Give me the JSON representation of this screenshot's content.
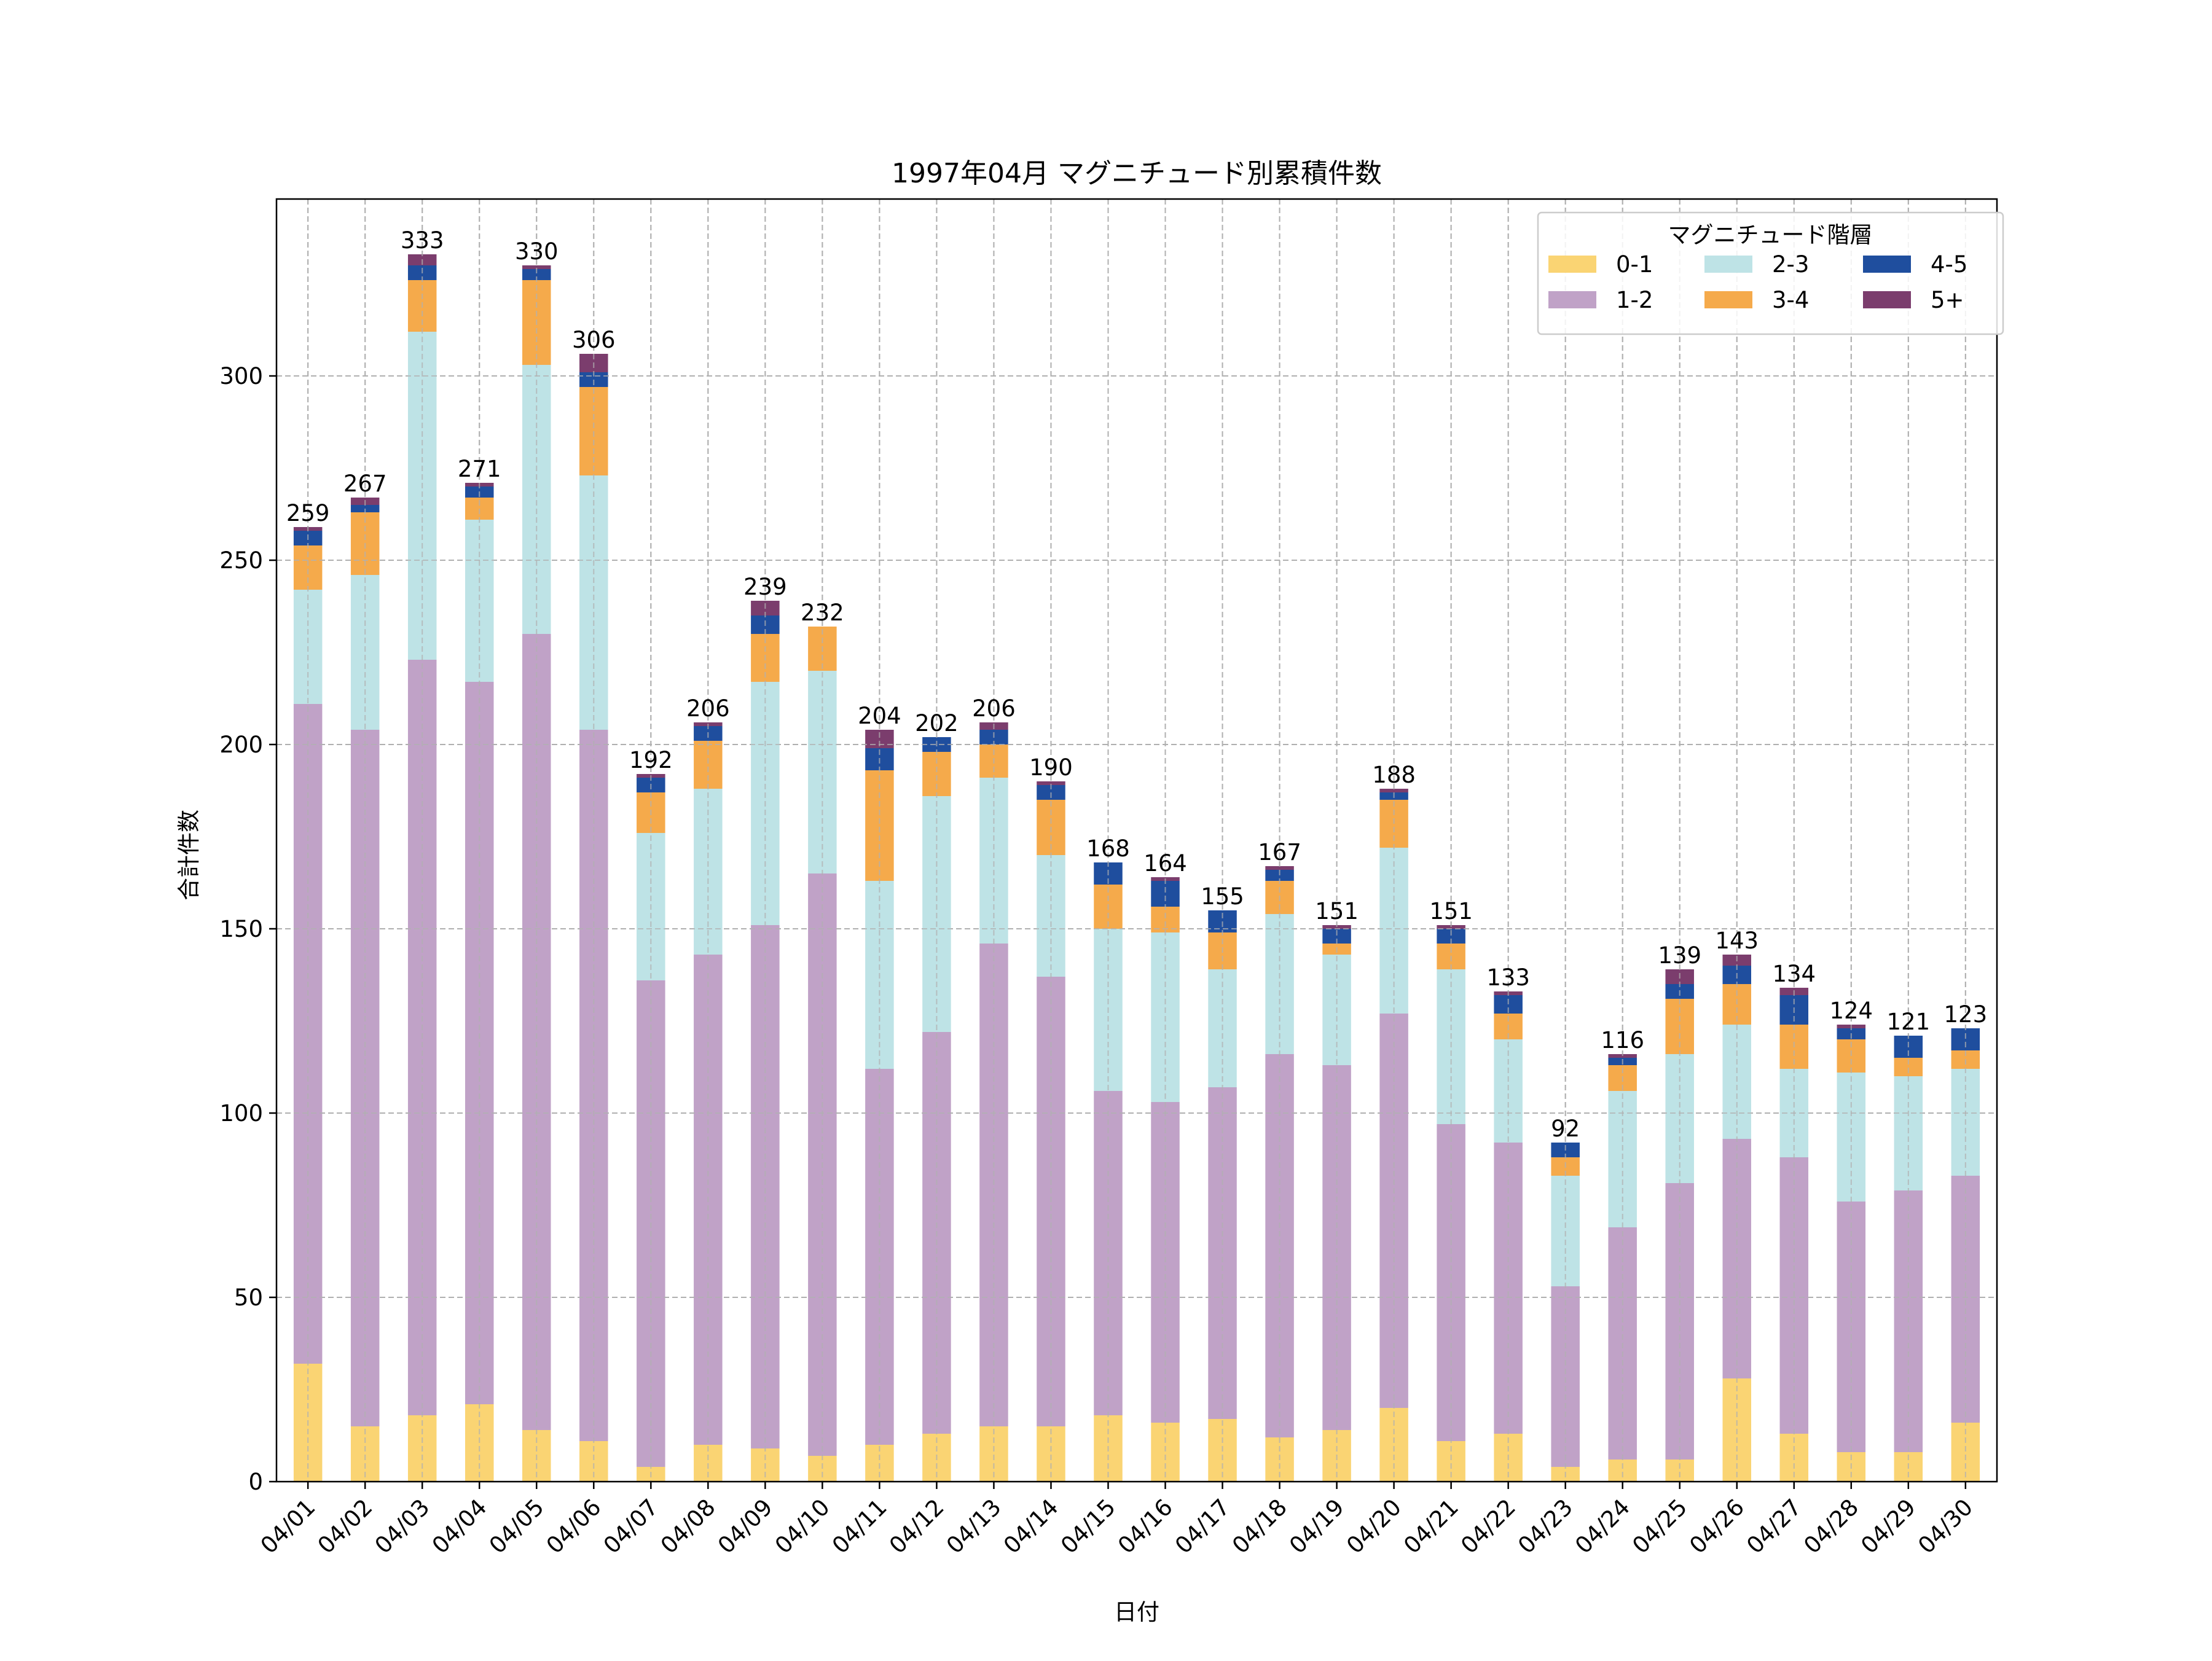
{
  "chart_data": {
    "type": "bar",
    "stacked": true,
    "title": "1997年04月 マグニチュード別累積件数",
    "xlabel": "日付",
    "ylabel": "合計件数",
    "ylim": [
      0,
      348
    ],
    "yticks": [
      0,
      50,
      100,
      150,
      200,
      250,
      300
    ],
    "grid": true,
    "legend_title": "マグニチュード階層",
    "legend_position": "top-right",
    "categories": [
      "04/01",
      "04/02",
      "04/03",
      "04/04",
      "04/05",
      "04/06",
      "04/07",
      "04/08",
      "04/09",
      "04/10",
      "04/11",
      "04/12",
      "04/13",
      "04/14",
      "04/15",
      "04/16",
      "04/17",
      "04/18",
      "04/19",
      "04/20",
      "04/21",
      "04/22",
      "04/23",
      "04/24",
      "04/25",
      "04/26",
      "04/27",
      "04/28",
      "04/29",
      "04/30"
    ],
    "totals": [
      259,
      267,
      333,
      271,
      330,
      306,
      192,
      206,
      239,
      232,
      204,
      202,
      206,
      190,
      168,
      164,
      155,
      167,
      151,
      188,
      151,
      133,
      92,
      116,
      139,
      143,
      134,
      124,
      121,
      123
    ],
    "series": [
      {
        "name": "0-1",
        "color": "#FAD473",
        "values": [
          32,
          15,
          18,
          21,
          14,
          11,
          4,
          10,
          9,
          7,
          10,
          13,
          15,
          15,
          18,
          16,
          17,
          12,
          14,
          20,
          11,
          13,
          4,
          6,
          6,
          28,
          13,
          8,
          8,
          16
        ]
      },
      {
        "name": "1-2",
        "color": "#C0A2C7",
        "values": [
          179,
          189,
          205,
          196,
          216,
          193,
          132,
          133,
          142,
          158,
          102,
          109,
          131,
          122,
          88,
          87,
          90,
          104,
          99,
          107,
          86,
          79,
          49,
          63,
          75,
          65,
          75,
          68,
          71,
          67
        ]
      },
      {
        "name": "2-3",
        "color": "#BEE3E6",
        "values": [
          31,
          42,
          89,
          44,
          73,
          69,
          40,
          45,
          66,
          55,
          51,
          64,
          45,
          33,
          44,
          46,
          32,
          38,
          30,
          45,
          42,
          28,
          30,
          37,
          35,
          31,
          24,
          35,
          31,
          29
        ]
      },
      {
        "name": "3-4",
        "color": "#F5AA4B",
        "values": [
          12,
          17,
          14,
          6,
          23,
          24,
          11,
          13,
          13,
          12,
          30,
          12,
          9,
          15,
          12,
          7,
          10,
          9,
          3,
          13,
          7,
          7,
          5,
          7,
          15,
          11,
          12,
          9,
          5,
          5
        ]
      },
      {
        "name": "4-5",
        "color": "#1F4E9E",
        "values": [
          4,
          2,
          4,
          3,
          3,
          4,
          4,
          4,
          5,
          0,
          6,
          4,
          4,
          4,
          6,
          7,
          6,
          3,
          4,
          2,
          4,
          5,
          4,
          2,
          4,
          5,
          8,
          3,
          6,
          6
        ]
      },
      {
        "name": "5+",
        "color": "#7B3D6D",
        "values": [
          1,
          2,
          3,
          1,
          1,
          5,
          1,
          1,
          4,
          0,
          5,
          0,
          2,
          1,
          0,
          1,
          0,
          1,
          1,
          1,
          1,
          1,
          0,
          1,
          4,
          3,
          2,
          1,
          0,
          0
        ]
      }
    ]
  }
}
